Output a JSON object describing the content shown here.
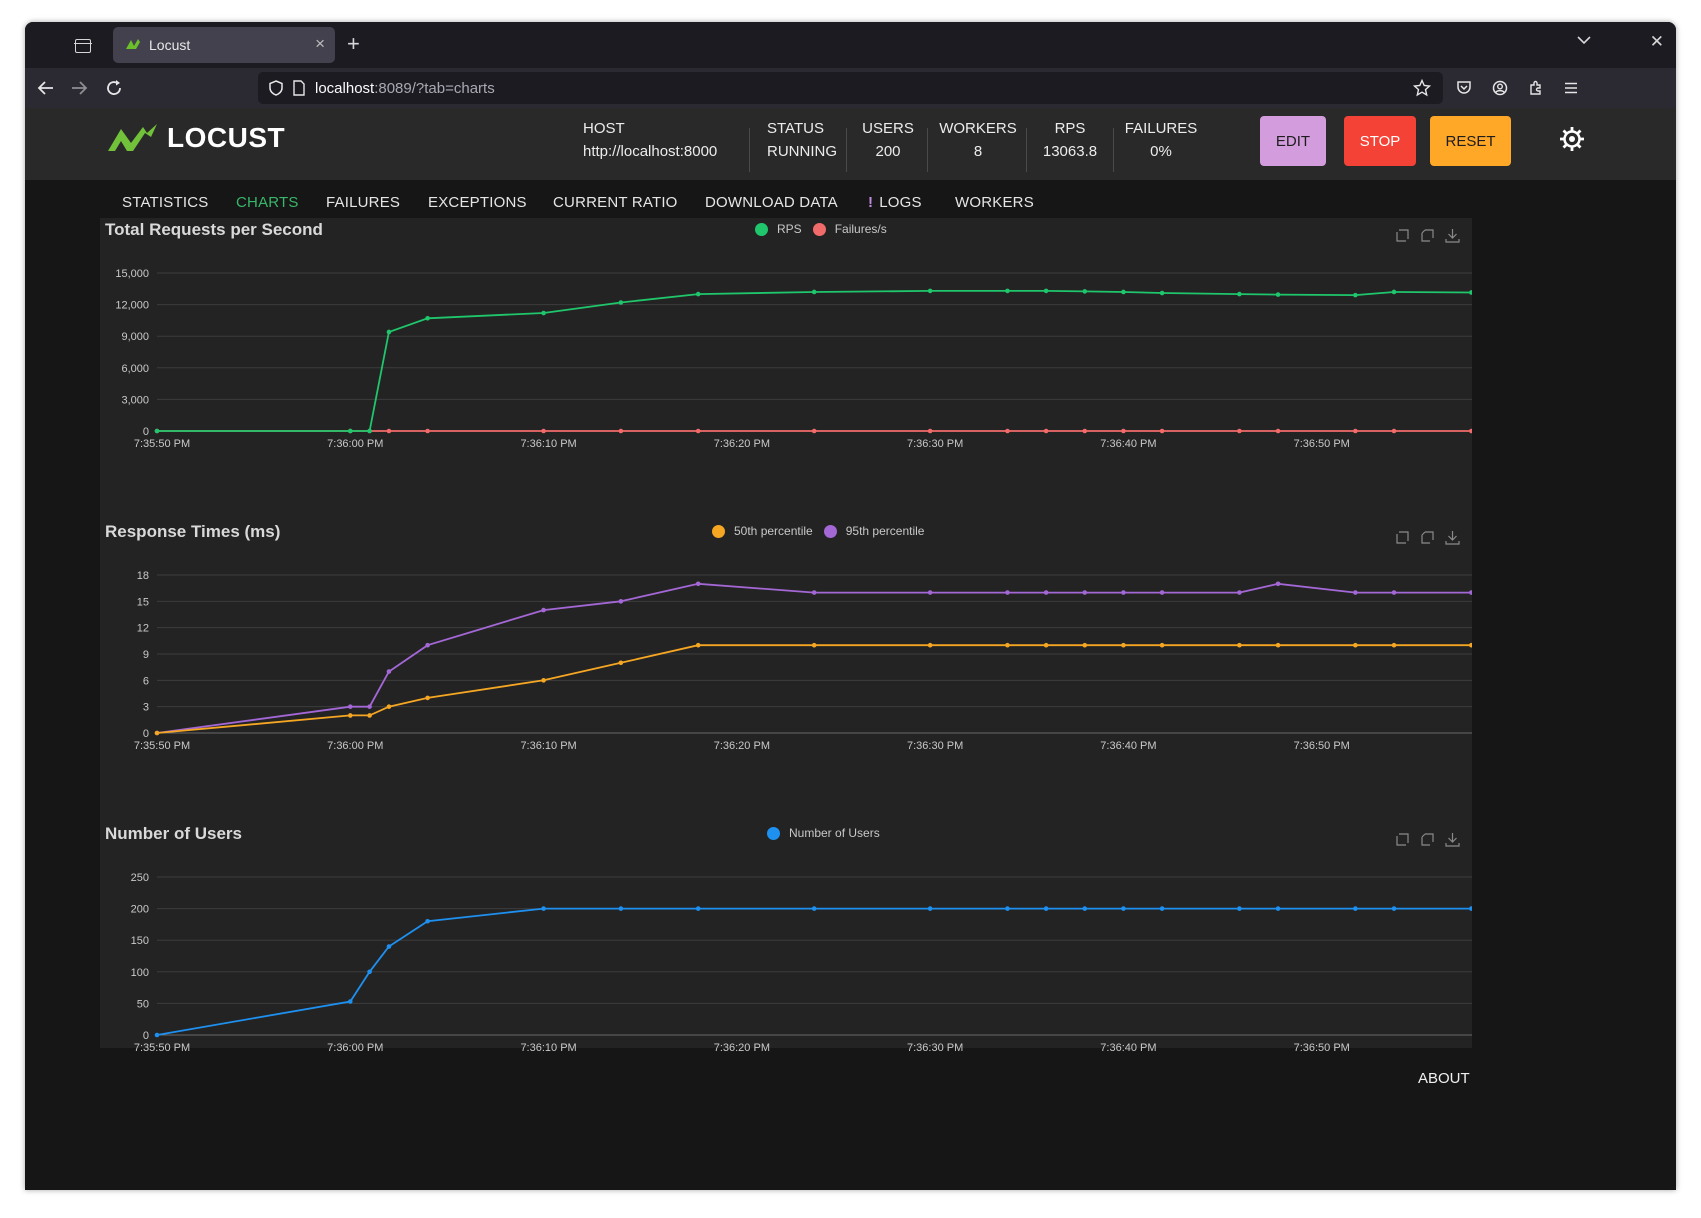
{
  "browser": {
    "tab_title": "Locust",
    "url_host": "localhost",
    "url_rest": ":8089/?tab=charts"
  },
  "header": {
    "logo_text": "LOCUST",
    "stats": [
      {
        "label": "HOST",
        "value": "http://localhost:8000"
      },
      {
        "label": "STATUS",
        "value": "RUNNING"
      },
      {
        "label": "USERS",
        "value": "200"
      },
      {
        "label": "WORKERS",
        "value": "8"
      },
      {
        "label": "RPS",
        "value": "13063.8"
      },
      {
        "label": "FAILURES",
        "value": "0%"
      }
    ],
    "buttons": {
      "edit": "EDIT",
      "stop": "STOP",
      "reset": "RESET"
    },
    "colors": {
      "edit": "#d39ddd",
      "stop": "#f44336",
      "reset": "#ffa726",
      "accent": "#38b66a"
    }
  },
  "tabs": [
    "STATISTICS",
    "CHARTS",
    "FAILURES",
    "EXCEPTIONS",
    "CURRENT RATIO",
    "DOWNLOAD DATA",
    "LOGS",
    "WORKERS"
  ],
  "active_tab": "CHARTS",
  "footer": {
    "about": "ABOUT"
  },
  "chart_data": [
    {
      "type": "line",
      "title": "Total Requests per Second",
      "x": [
        "7:35:50",
        "7:36:00",
        "7:36:01",
        "7:36:02",
        "7:36:04",
        "7:36:10",
        "7:36:14",
        "7:36:18",
        "7:36:24",
        "7:36:30",
        "7:36:34",
        "7:36:36",
        "7:36:38",
        "7:36:40",
        "7:36:42",
        "7:36:46",
        "7:36:48",
        "7:36:52",
        "7:36:54",
        "7:36:58",
        "7:37:00"
      ],
      "x_ticks": [
        "7:35:50 PM",
        "7:36:00 PM",
        "7:36:10 PM",
        "7:36:20 PM",
        "7:36:30 PM",
        "7:36:40 PM",
        "7:36:50 PM"
      ],
      "ylim": [
        0,
        15000
      ],
      "y_ticks": [
        "0",
        "3,000",
        "6,000",
        "9,000",
        "12,000",
        "15,000"
      ],
      "series": [
        {
          "name": "RPS",
          "color": "#1fc66b",
          "values": [
            0,
            0,
            0,
            9400,
            10700,
            11200,
            12200,
            13000,
            13200,
            13300,
            13300,
            13300,
            13250,
            13200,
            13100,
            13000,
            12950,
            12900,
            13200,
            13150,
            13000
          ]
        },
        {
          "name": "Failures/s",
          "color": "#f26b6b",
          "values": [
            0,
            0,
            0,
            0,
            0,
            0,
            0,
            0,
            0,
            0,
            0,
            0,
            0,
            0,
            0,
            0,
            0,
            0,
            0,
            0,
            0
          ]
        }
      ]
    },
    {
      "type": "line",
      "title": "Response Times (ms)",
      "x": [
        "7:35:50",
        "7:36:00",
        "7:36:01",
        "7:36:02",
        "7:36:04",
        "7:36:10",
        "7:36:14",
        "7:36:18",
        "7:36:24",
        "7:36:30",
        "7:36:34",
        "7:36:36",
        "7:36:38",
        "7:36:40",
        "7:36:42",
        "7:36:46",
        "7:36:48",
        "7:36:52",
        "7:36:54",
        "7:36:58",
        "7:37:00"
      ],
      "x_ticks": [
        "7:35:50 PM",
        "7:36:00 PM",
        "7:36:10 PM",
        "7:36:20 PM",
        "7:36:30 PM",
        "7:36:40 PM",
        "7:36:50 PM"
      ],
      "ylim": [
        0,
        18
      ],
      "y_ticks": [
        "0",
        "3",
        "6",
        "9",
        "12",
        "15",
        "18"
      ],
      "series": [
        {
          "name": "50th percentile",
          "color": "#f5a623",
          "values": [
            0,
            2,
            2,
            3,
            4,
            6,
            8,
            10,
            10,
            10,
            10,
            10,
            10,
            10,
            10,
            10,
            10,
            10,
            10,
            10,
            10
          ]
        },
        {
          "name": "95th percentile",
          "color": "#a467d6",
          "values": [
            0,
            3,
            3,
            7,
            10,
            14,
            15,
            17,
            16,
            16,
            16,
            16,
            16,
            16,
            16,
            16,
            17,
            16,
            16,
            16,
            17
          ]
        }
      ]
    },
    {
      "type": "line",
      "title": "Number of Users",
      "x": [
        "7:35:50",
        "7:36:00",
        "7:36:01",
        "7:36:02",
        "7:36:04",
        "7:36:10",
        "7:36:14",
        "7:36:18",
        "7:36:24",
        "7:36:30",
        "7:36:34",
        "7:36:36",
        "7:36:38",
        "7:36:40",
        "7:36:42",
        "7:36:46",
        "7:36:48",
        "7:36:52",
        "7:36:54",
        "7:36:58",
        "7:37:00"
      ],
      "x_ticks": [
        "7:35:50 PM",
        "7:36:00 PM",
        "7:36:10 PM",
        "7:36:20 PM",
        "7:36:30 PM",
        "7:36:40 PM",
        "7:36:50 PM"
      ],
      "ylim": [
        0,
        250
      ],
      "y_ticks": [
        "0",
        "50",
        "100",
        "150",
        "200",
        "250"
      ],
      "series": [
        {
          "name": "Number of Users",
          "color": "#1e90f0",
          "values": [
            0,
            53,
            100,
            140,
            180,
            200,
            200,
            200,
            200,
            200,
            200,
            200,
            200,
            200,
            200,
            200,
            200,
            200,
            200,
            200,
            200
          ]
        }
      ]
    }
  ]
}
